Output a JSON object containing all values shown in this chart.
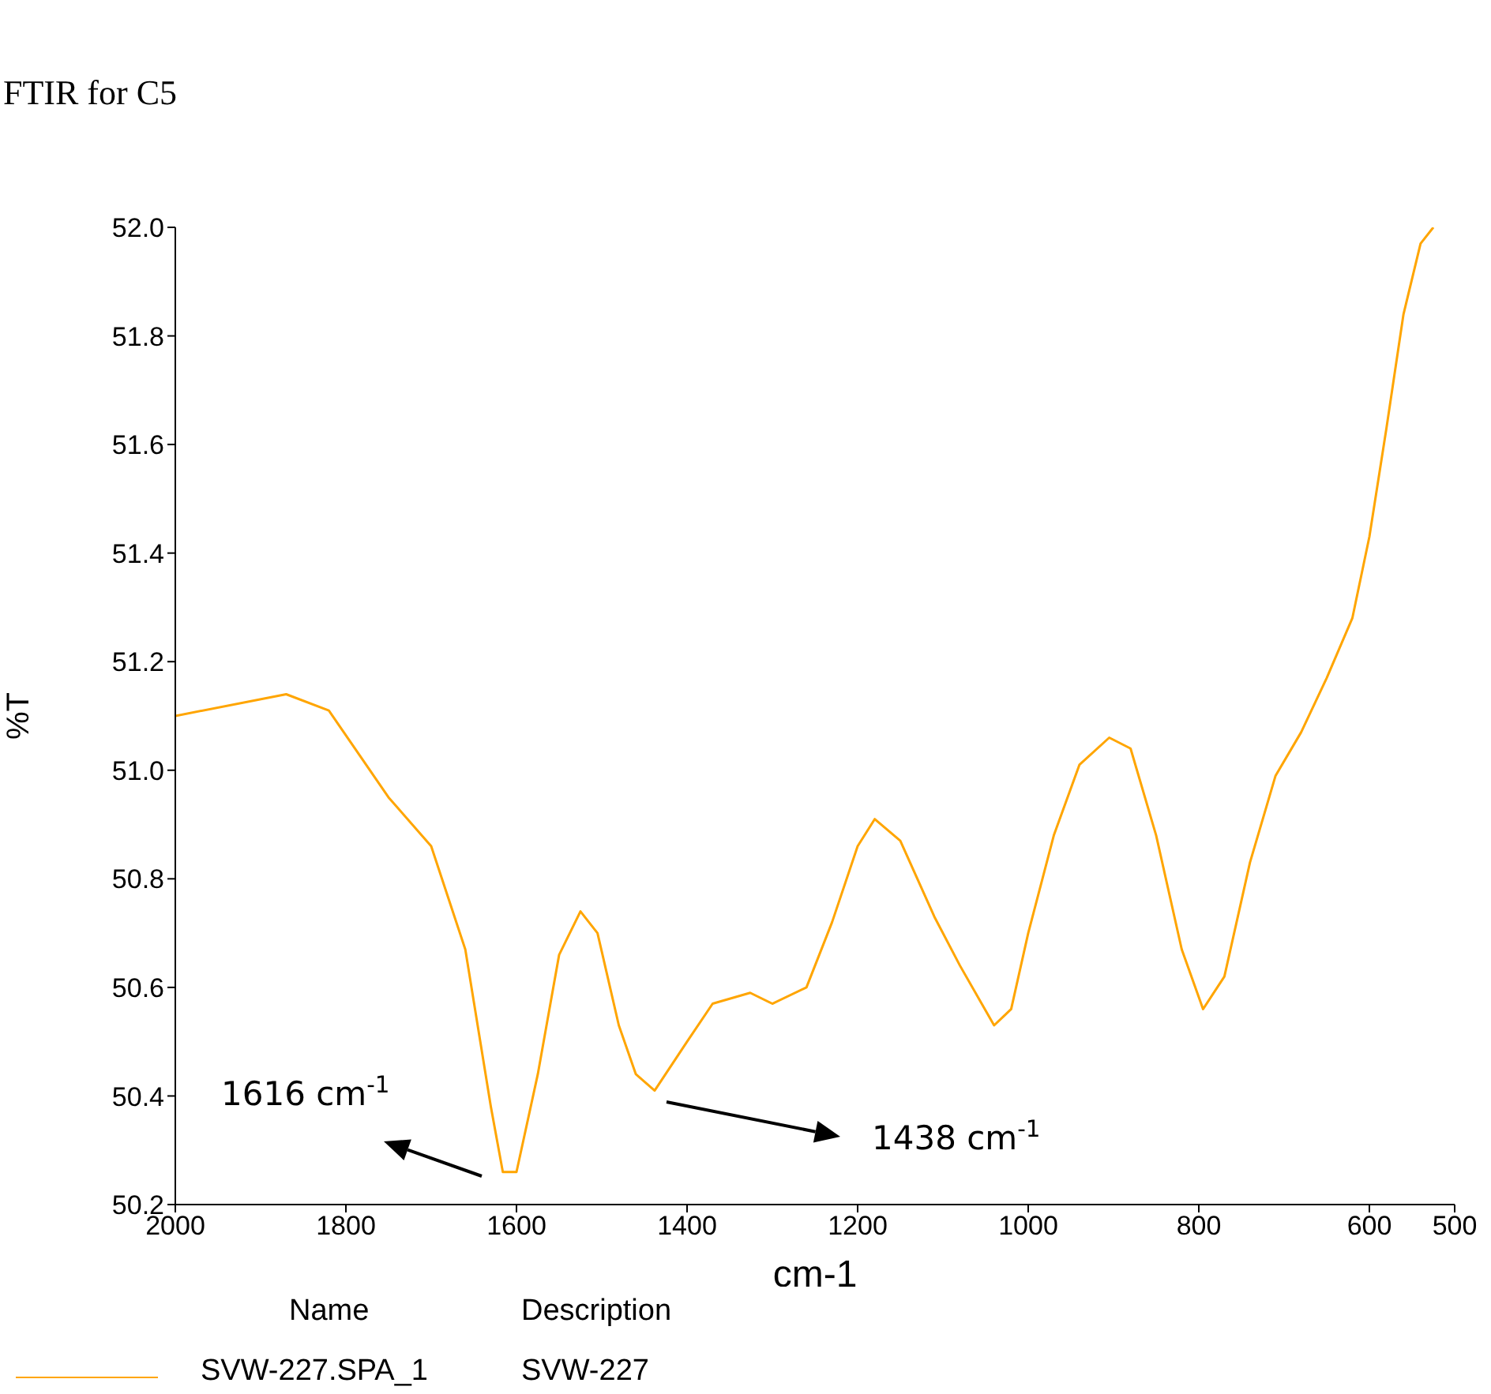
{
  "chart_data": {
    "type": "line",
    "title": "FTIR for C5",
    "xlabel": "cm-1",
    "ylabel": "%T",
    "legend_title": "Name",
    "x": [
      2000,
      1870,
      1820,
      1750,
      1700,
      1660,
      1630,
      1616,
      1600,
      1575,
      1550,
      1525,
      1505,
      1480,
      1460,
      1438,
      1400,
      1370,
      1326,
      1300,
      1260,
      1230,
      1200,
      1180,
      1150,
      1110,
      1080,
      1040,
      1020,
      1000,
      970,
      940,
      905,
      880,
      850,
      820,
      795,
      770,
      740,
      710,
      680,
      650,
      620,
      600,
      580,
      560,
      540,
      525
    ],
    "series": [
      {
        "name": "SVW-227.SPA_1",
        "color": "#ffa500",
        "values": [
          51.1,
          51.14,
          51.11,
          50.95,
          50.86,
          50.67,
          50.38,
          50.26,
          50.26,
          50.44,
          50.66,
          50.74,
          50.7,
          50.53,
          50.44,
          50.41,
          50.5,
          50.57,
          50.59,
          50.57,
          50.6,
          50.72,
          50.86,
          50.91,
          50.87,
          50.73,
          50.64,
          50.53,
          50.56,
          50.7,
          50.88,
          51.01,
          51.06,
          51.04,
          50.88,
          50.67,
          50.56,
          50.62,
          50.83,
          50.99,
          51.07,
          51.17,
          51.28,
          51.43,
          51.63,
          51.84,
          51.97,
          52.0
        ]
      }
    ],
    "xlim": [
      2000,
      500
    ],
    "xticks": [
      2000,
      1800,
      1600,
      1400,
      1200,
      1000,
      800,
      600,
      500
    ],
    "ylim": [
      50.2,
      52.0
    ],
    "yticks": [
      50.2,
      50.4,
      50.6,
      50.8,
      {
        "value": 51.0,
        "label": "51.0"
      },
      51.2,
      51.4,
      51.6,
      51.8,
      {
        "value": 52.0,
        "label": "52.0"
      }
    ],
    "legend": "bottom",
    "annotations": [
      "1616 cm$^{-1}$",
      "1438 cm$^{-1}$",
      "Description",
      "SVW-227"
    ]
  }
}
